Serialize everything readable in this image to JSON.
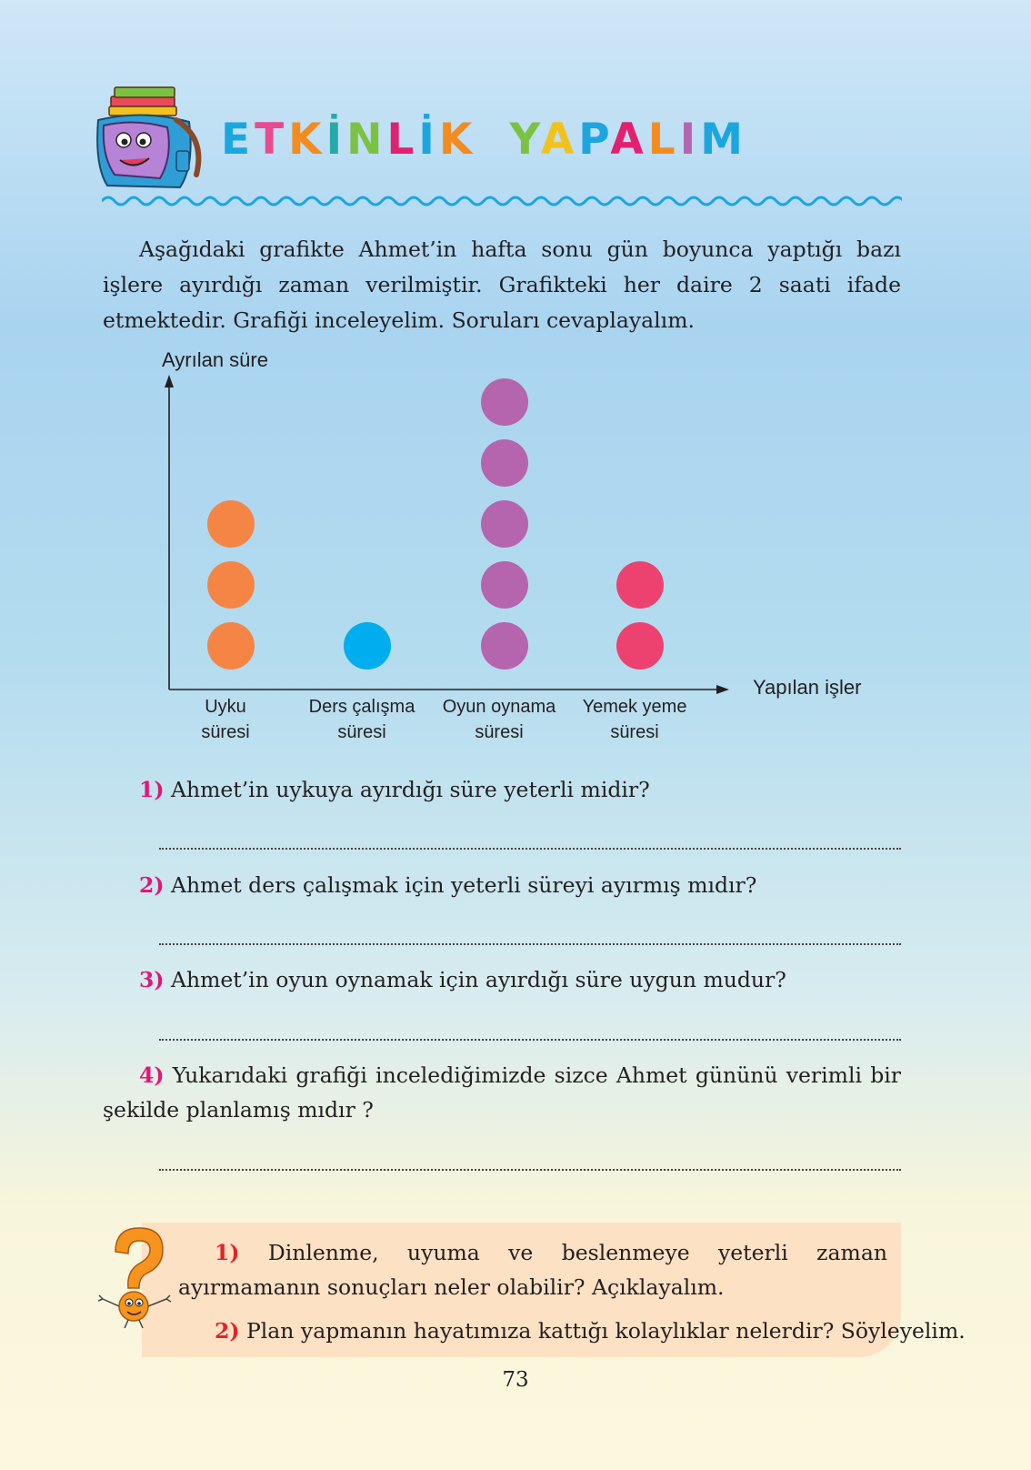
{
  "header": {
    "title_word1": "ETKİNLİK",
    "title_word2": "YAPALIM",
    "letter_colors": [
      "#1ba6e0",
      "#e94b8f",
      "#f38b1f",
      "#27a9a8",
      "#7cc242",
      "#e3206f",
      "#1ba6e0",
      "#f38b1f",
      "#7cc242",
      "#f1c21b",
      "#1ba6e0",
      "#e3206f",
      "#f38b1f",
      "#b565b0"
    ],
    "mascot_icon": "school-backpack-with-books-icon"
  },
  "intro": {
    "text": "Aşağıdaki grafikte Ahmet’in hafta sonu gün boyunca yaptığı bazı işlere ayırdığı zaman verilmiştir. Grafikteki her daire 2 saati ifade etmektedir. Grafiği inceleyelim. Soruları cevaplayalım."
  },
  "chart_data": {
    "type": "pictograph",
    "ylabel": "Ayrılan süre",
    "xlabel": "Yapılan işler",
    "categories": [
      {
        "line1": "Uyku",
        "line2": "süresi",
        "count": 3,
        "color": "#f58545"
      },
      {
        "line1": "Ders çalışma",
        "line2": "süresi",
        "count": 1,
        "color": "#00aeef"
      },
      {
        "line1": "Oyun oynama",
        "line2": "süresi",
        "count": 5,
        "color": "#b565ad"
      },
      {
        "line1": "Yemek yeme",
        "line2": "süresi",
        "count": 2,
        "color": "#ed4170"
      }
    ],
    "symbol": "circle",
    "symbol_value_hours": 2,
    "grid": false
  },
  "questions": [
    {
      "number": "1)",
      "text": "Ahmet’in uykuya ayırdığı süre yeterli midir?"
    },
    {
      "number": "2)",
      "text": "Ahmet ders çalışmak için yeterli süreyi ayırmış mıdır?"
    },
    {
      "number": "3)",
      "text": "Ahmet’in oyun oynamak için ayırdığı süre uygun mudur?"
    },
    {
      "number": "4)",
      "text": "Yukarıdaki grafiği incelediğimizde sizce Ahmet gününü verimli bir şekilde planlamış mıdır ?"
    }
  ],
  "discussion": {
    "icon": "orange-question-mark-character-icon",
    "items": [
      {
        "number": "1)",
        "text": "Dinlenme, uyuma ve beslenmeye yeterli zaman ayırmamanın sonuçları neler olabilir? Açıklayalım."
      },
      {
        "number": "2)",
        "text": "Plan yapmanın hayatımıza kattığı kolaylıklar nelerdir? Söyleyelim."
      }
    ]
  },
  "page_number": "73"
}
